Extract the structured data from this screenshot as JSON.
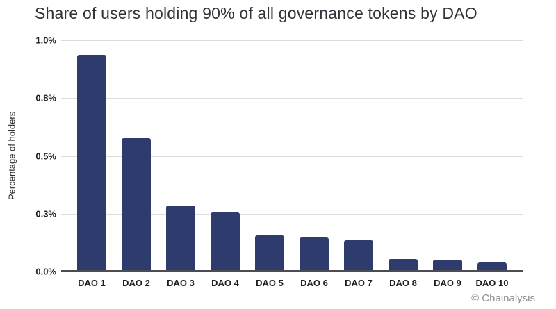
{
  "title": "Share of users holding 90% of all governance tokens by DAO",
  "attribution": "© Chainalysis",
  "colors": {
    "bar": "#2d3c6c",
    "grid": "#dcdcdc",
    "axis_line": "#4c4d52",
    "tick_text": "#1f1f23",
    "title_text": "#32323a",
    "attribution_text": "#8d8d8d",
    "background": "#ffffff"
  },
  "chart_data": {
    "type": "bar",
    "title": "Share of users holding 90% of all governance tokens by DAO",
    "categories": [
      "DAO 1",
      "DAO 2",
      "DAO 3",
      "DAO 4",
      "DAO 5",
      "DAO 6",
      "DAO 7",
      "DAO 8",
      "DAO 9",
      "DAO 10"
    ],
    "values": [
      0.93,
      0.57,
      0.28,
      0.25,
      0.15,
      0.14,
      0.13,
      0.047,
      0.045,
      0.032
    ],
    "unit": "%",
    "xlabel": "",
    "ylabel": "Percentage of holders",
    "ylim": [
      0,
      1.0
    ],
    "yticks": [
      {
        "value": 0.0,
        "label": "0.0%"
      },
      {
        "value": 0.25,
        "label": "0.3%"
      },
      {
        "value": 0.5,
        "label": "0.5%"
      },
      {
        "value": 0.75,
        "label": "0.8%"
      },
      {
        "value": 1.0,
        "label": "1.0%"
      }
    ],
    "grid": true,
    "legend": false
  }
}
